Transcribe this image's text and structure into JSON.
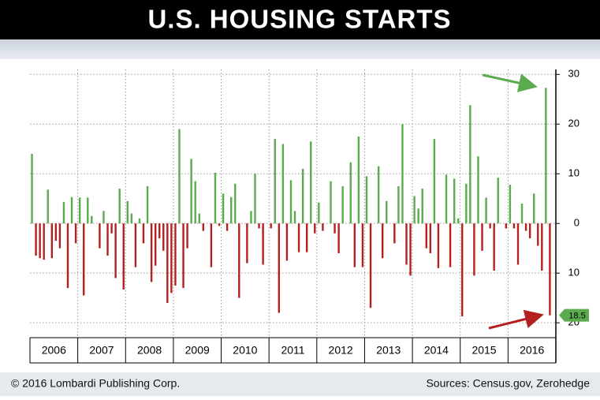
{
  "chart_data": {
    "type": "bar",
    "title": "U.S. HOUSING STARTS",
    "years": [
      "2006",
      "2007",
      "2008",
      "2009",
      "2010",
      "2011",
      "2012",
      "2013",
      "2014",
      "2015",
      "2016"
    ],
    "values": [
      14,
      -6.5,
      -7,
      -7.3,
      6.8,
      -7,
      -3.5,
      -5,
      4.3,
      -13,
      5.3,
      -4,
      5.2,
      -14.5,
      5.2,
      1.5,
      0,
      -5,
      2.5,
      -6.5,
      -2,
      -11,
      7,
      -13.3,
      4.5,
      2,
      -8.8,
      1,
      -4,
      7.5,
      -11.8,
      -8.5,
      -3,
      -5.5,
      -16,
      -14,
      -12.5,
      19,
      -13,
      -5,
      13,
      8.5,
      2,
      -1.5,
      0,
      -8.8,
      10.2,
      -0.5,
      6,
      -1.5,
      5.3,
      8,
      -15,
      0,
      -8,
      2.5,
      10,
      -1,
      -8.3,
      0,
      -1,
      17,
      -18,
      16,
      -7.5,
      8.7,
      2.5,
      -5.8,
      11,
      -5.8,
      16.5,
      -2,
      4.2,
      -1.5,
      0,
      8.5,
      -2,
      -6,
      7.5,
      0,
      12.3,
      -8.8,
      17.5,
      -8.8,
      9.5,
      -17,
      0,
      11.5,
      -7,
      4.5,
      0,
      -4,
      7.5,
      20,
      -8.3,
      -10.5,
      5.5,
      3,
      7,
      -5,
      -6,
      17,
      -9,
      0,
      9.8,
      -8.8,
      9,
      1,
      -18.7,
      8,
      23.8,
      -10.5,
      13.5,
      -5.5,
      5.2,
      -1,
      -9.5,
      9.2,
      0,
      -1,
      7.8,
      -1,
      -8.3,
      4,
      -1.5,
      -3,
      6,
      -4.5,
      -9.5,
      27.3,
      -18.5
    ],
    "colors": {
      "positive": "#5aab4e",
      "negative": "#b3201f"
    },
    "ylim": [
      -23,
      31
    ],
    "yticks": [
      {
        "value": -20,
        "label": "20"
      },
      {
        "value": -10,
        "label": "10"
      },
      0,
      10,
      20,
      30
    ],
    "grid": true,
    "callout": {
      "value": -18.5,
      "label": "18.5"
    },
    "footer_left": "© 2016 Lombardi Publishing Corp.",
    "footer_right": "Sources: Census.gov, Zerohedge"
  }
}
